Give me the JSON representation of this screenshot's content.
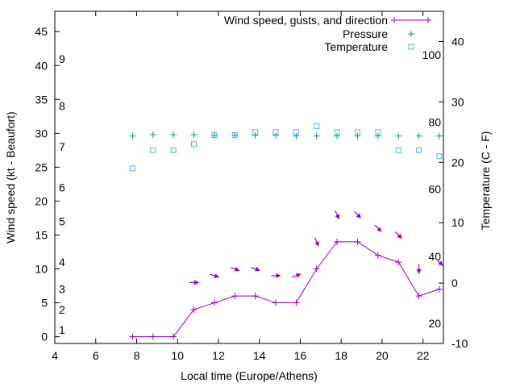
{
  "chart_data": {
    "type": "line",
    "legend": {
      "position": "top-right",
      "entries": [
        {
          "label": "Wind speed, gusts, and direction",
          "color": "#9400d3",
          "marker": "plus-line"
        },
        {
          "label": "Pressure",
          "color": "#009e73",
          "marker": "plus"
        },
        {
          "label": "Temperature",
          "color": "#56b4e9",
          "marker": "square"
        }
      ]
    },
    "xlabel": "Local time (Europe/Athens)",
    "ylabel_left": "Wind speed (kt - Beaufort)",
    "ylabel_right": "Temperature (C - F)",
    "xlim": [
      4,
      23
    ],
    "ylim_left": [
      -1,
      48
    ],
    "ylim_right": [
      -10,
      45
    ],
    "x_ticks": [
      {
        "value": 4,
        "label": "4"
      },
      {
        "value": 6,
        "label": "6"
      },
      {
        "value": 8,
        "label": "8"
      },
      {
        "value": 10,
        "label": "10"
      },
      {
        "value": 12,
        "label": "12"
      },
      {
        "value": 14,
        "label": "14"
      },
      {
        "value": 16,
        "label": "16"
      },
      {
        "value": 18,
        "label": "18"
      },
      {
        "value": 20,
        "label": "20"
      },
      {
        "value": 22,
        "label": "22"
      }
    ],
    "y_left_ticks": [
      {
        "value": 0,
        "label": "0"
      },
      {
        "value": 5,
        "label": "5"
      },
      {
        "value": 10,
        "label": "10"
      },
      {
        "value": 15,
        "label": "15"
      },
      {
        "value": 20,
        "label": "20"
      },
      {
        "value": 25,
        "label": "25"
      },
      {
        "value": 30,
        "label": "30"
      },
      {
        "value": 35,
        "label": "35"
      },
      {
        "value": 40,
        "label": "40"
      },
      {
        "value": 45,
        "label": "45"
      }
    ],
    "y_right_ticks": [
      {
        "value": -10,
        "label": "-10"
      },
      {
        "value": 0,
        "label": "0"
      },
      {
        "value": 10,
        "label": "10"
      },
      {
        "value": 20,
        "label": "20"
      },
      {
        "value": 30,
        "label": "30"
      },
      {
        "value": 40,
        "label": "40"
      }
    ],
    "beaufort_labels": [
      {
        "value": 1,
        "label": "1"
      },
      {
        "value": 4,
        "label": "2"
      },
      {
        "value": 7,
        "label": "3"
      },
      {
        "value": 11,
        "label": "4"
      },
      {
        "value": 17,
        "label": "5"
      },
      {
        "value": 22,
        "label": "6"
      },
      {
        "value": 28,
        "label": "7"
      },
      {
        "value": 34,
        "label": "8"
      },
      {
        "value": 41,
        "label": "9"
      }
    ],
    "fahrenheit_labels": [
      {
        "value": 20,
        "label": "20"
      },
      {
        "value": 40,
        "label": "40"
      },
      {
        "value": 60,
        "label": "60"
      },
      {
        "value": 80,
        "label": "80"
      },
      {
        "value": 100,
        "label": "100"
      }
    ],
    "series": [
      {
        "name": "Wind speed, gusts, and direction",
        "axis": "left",
        "x": [
          7.8,
          8.8,
          9.8,
          10.8,
          11.8,
          12.8,
          13.8,
          14.8,
          15.8,
          16.8,
          17.8,
          18.8,
          19.8,
          20.8,
          21.8,
          22.8
        ],
        "values": [
          0,
          0,
          0,
          4,
          5,
          6,
          6,
          5,
          5,
          10,
          14,
          14,
          12,
          11,
          6,
          7
        ]
      },
      {
        "name": "Pressure",
        "axis": "left",
        "x": [
          7.8,
          8.8,
          9.8,
          10.8,
          11.8,
          12.8,
          13.8,
          14.8,
          15.8,
          16.8,
          17.8,
          18.8,
          19.8,
          20.8,
          21.8,
          22.8
        ],
        "values": [
          29.6,
          29.8,
          29.8,
          29.8,
          29.7,
          29.7,
          29.7,
          29.7,
          29.6,
          29.6,
          29.6,
          29.6,
          29.6,
          29.6,
          29.6,
          29.6
        ]
      },
      {
        "name": "Temperature",
        "axis": "right",
        "x": [
          7.8,
          8.8,
          9.8,
          10.8,
          11.8,
          12.8,
          13.8,
          14.8,
          15.8,
          16.8,
          17.8,
          18.8,
          19.8,
          20.8,
          21.8,
          22.8
        ],
        "values": [
          19,
          22,
          22,
          23,
          24.5,
          24.5,
          25,
          25,
          25,
          26,
          25,
          25,
          25,
          22,
          22,
          21
        ]
      }
    ],
    "wind_arrows": [
      {
        "x": 10.8,
        "y": 8,
        "dir": "E"
      },
      {
        "x": 11.8,
        "y": 9,
        "dir": "ESE"
      },
      {
        "x": 12.8,
        "y": 10,
        "dir": "ESE"
      },
      {
        "x": 13.8,
        "y": 10,
        "dir": "ESE"
      },
      {
        "x": 14.8,
        "y": 9,
        "dir": "E"
      },
      {
        "x": 15.8,
        "y": 9,
        "dir": "ENE"
      },
      {
        "x": 16.8,
        "y": 14,
        "dir": "SSE"
      },
      {
        "x": 17.8,
        "y": 18,
        "dir": "SSE"
      },
      {
        "x": 18.8,
        "y": 18,
        "dir": "SE"
      },
      {
        "x": 19.8,
        "y": 16,
        "dir": "SE"
      },
      {
        "x": 20.8,
        "y": 15,
        "dir": "SE"
      },
      {
        "x": 21.8,
        "y": 10,
        "dir": "S"
      },
      {
        "x": 22.8,
        "y": 11,
        "dir": "SE"
      }
    ],
    "grid": false
  }
}
